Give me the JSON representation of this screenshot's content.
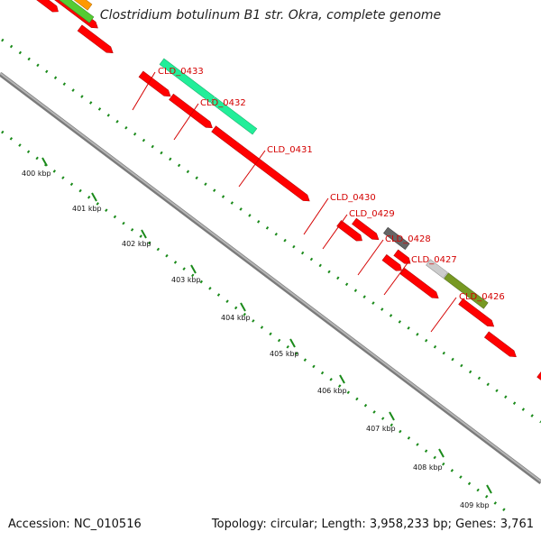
{
  "title": "Clostridium botulinum B1 str. Okra, complete genome",
  "footer": {
    "accession": "Accession: NC_010516",
    "stats": "Topology: circular; Length: 3,958,233 bp; Genes: 3,761"
  },
  "colors": {
    "cds_red": "#ff0000",
    "backbone_gray": "#9a9a9a",
    "tick_green": "#1a8a1a",
    "label_red": "#d40000",
    "cog_teal": "#22ee99",
    "cog_orange": "#ff9900",
    "cog_green": "#55cc33",
    "cog_darkgray": "#666666",
    "cog_lightgray": "#cccccc",
    "cog_olive": "#779922",
    "cog_pink": "#ff1493"
  },
  "kbp_ticks": [
    "400 kbp",
    "401 kbp",
    "402 kbp",
    "403 kbp",
    "404 kbp",
    "405 kbp",
    "406 kbp",
    "407 kbp",
    "408 kbp",
    "409 kbp"
  ],
  "gene_labels": [
    "CLD_0433",
    "CLD_0432",
    "CLD_0431",
    "CLD_0430",
    "CLD_0429",
    "CLD_0428",
    "CLD_0427",
    "CLD_0426"
  ]
}
